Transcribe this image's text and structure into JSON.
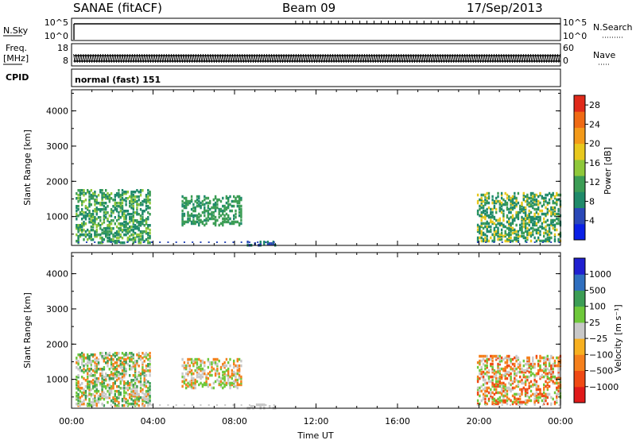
{
  "header": {
    "station": "SANAE (fitACF)",
    "beam": "Beam 09",
    "date": "17/Sep/2013"
  },
  "strip1": {
    "left_label": "N.Sky",
    "left_ticks": [
      "10^5",
      "10^0"
    ],
    "right_label": "N.Search",
    "right_ticks": [
      "10^5",
      "10^0"
    ]
  },
  "strip2": {
    "left_label_1": "Freq.",
    "left_label_2": "[MHz]",
    "left_ticks": [
      "18",
      "8"
    ],
    "right_label": "Nave",
    "right_ticks": [
      "60",
      "0"
    ]
  },
  "strip3": {
    "left_label": "CPID",
    "cpid_text": "normal (fast) 151"
  },
  "colors": {
    "power": [
      "#0a20e6",
      "#2a48b8",
      "#1f8a6a",
      "#3c9d55",
      "#8fc83a",
      "#e8c81e",
      "#f39a1a",
      "#ef6a14",
      "#e02a1a"
    ],
    "velocity": [
      "#e01a1a",
      "#f04a14",
      "#f5801c",
      "#f7b020",
      "#c8c8c8",
      "#6ec83a",
      "#3c9d55",
      "#2f6fbf",
      "#2020d0"
    ]
  },
  "chart_data": [
    {
      "type": "heatmap",
      "panel": "power",
      "xlabel": "",
      "ylabel": "Slant Range [km]",
      "xlim": [
        0,
        24
      ],
      "ylim": [
        180,
        4600
      ],
      "yticks": [
        "1000",
        "2000",
        "3000",
        "4000"
      ],
      "colorbar": {
        "label": "Power [dB]",
        "ticks": [
          "4",
          "8",
          "12",
          "16",
          "20",
          "24",
          "28"
        ],
        "range": [
          0,
          30
        ]
      },
      "patches": [
        {
          "t0": 0.2,
          "t1": 3.9,
          "r0": 250,
          "r1": 1800,
          "values": [
            8,
            10,
            12,
            16
          ]
        },
        {
          "t0": 5.4,
          "t1": 8.4,
          "r0": 750,
          "r1": 1600,
          "values": [
            8,
            12,
            14
          ]
        },
        {
          "t0": 8.6,
          "t1": 10.0,
          "r0": 180,
          "r1": 300,
          "values": [
            6,
            8
          ]
        },
        {
          "t0": 19.9,
          "t1": 24.0,
          "r0": 300,
          "r1": 1700,
          "values": [
            8,
            10,
            14,
            20
          ]
        }
      ]
    },
    {
      "type": "heatmap",
      "panel": "velocity",
      "xlabel": "Time UT",
      "ylabel": "Slant Range [km]",
      "xlim": [
        0,
        24
      ],
      "ylim": [
        180,
        4600
      ],
      "xticks": [
        "00:00",
        "04:00",
        "08:00",
        "12:00",
        "16:00",
        "20:00",
        "00:00"
      ],
      "yticks": [
        "1000",
        "2000",
        "3000",
        "4000"
      ],
      "colorbar": {
        "label": "Velocity [m s⁻¹]",
        "ticks": [
          "1000",
          "500",
          "100",
          "25",
          "−25",
          "−100",
          "−500",
          "−1000"
        ]
      },
      "patches": [
        {
          "t0": 0.2,
          "t1": 3.9,
          "r0": 250,
          "r1": 1800,
          "values": [
            -100,
            0,
            100,
            500
          ]
        },
        {
          "t0": 5.4,
          "t1": 8.4,
          "r0": 750,
          "r1": 1600,
          "values": [
            -100,
            0,
            100
          ]
        },
        {
          "t0": 8.6,
          "t1": 10.0,
          "r0": 180,
          "r1": 300,
          "values": [
            0
          ]
        },
        {
          "t0": 19.9,
          "t1": 24.0,
          "r0": 300,
          "r1": 1700,
          "values": [
            -500,
            -100,
            0,
            100
          ]
        }
      ]
    }
  ]
}
